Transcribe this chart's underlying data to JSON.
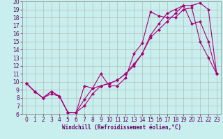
{
  "xlabel": "Windchill (Refroidissement éolien,°C)",
  "bg_color": "#c8eeee",
  "grid_color": "#b0b0b0",
  "line_color": "#aa0077",
  "xlim": [
    -0.5,
    23.5
  ],
  "ylim": [
    6,
    20
  ],
  "xticks": [
    0,
    1,
    2,
    3,
    4,
    5,
    6,
    7,
    8,
    9,
    10,
    11,
    12,
    13,
    14,
    15,
    16,
    17,
    18,
    19,
    20,
    21,
    22,
    23
  ],
  "yticks": [
    6,
    7,
    8,
    9,
    10,
    11,
    12,
    13,
    14,
    15,
    16,
    17,
    18,
    19,
    20
  ],
  "line1_x": [
    0,
    1,
    2,
    3,
    4,
    5,
    6,
    7,
    8,
    9,
    10,
    11,
    12,
    13,
    14,
    15,
    16,
    17,
    18,
    19,
    20,
    21,
    22,
    23
  ],
  "line1_y": [
    9.8,
    8.8,
    8.0,
    8.8,
    8.2,
    6.2,
    6.2,
    9.5,
    9.2,
    11.0,
    9.5,
    9.5,
    10.5,
    13.5,
    14.8,
    18.7,
    18.2,
    18.0,
    18.0,
    19.0,
    19.2,
    15.0,
    13.0,
    11.0
  ],
  "line2_x": [
    0,
    1,
    2,
    3,
    4,
    5,
    6,
    7,
    8,
    9,
    10,
    11,
    12,
    13,
    14,
    15,
    16,
    17,
    18,
    19,
    20,
    21,
    22,
    23
  ],
  "line2_y": [
    9.8,
    8.8,
    8.0,
    8.8,
    8.2,
    6.2,
    6.2,
    7.8,
    9.2,
    9.5,
    9.8,
    10.2,
    11.0,
    12.0,
    13.5,
    15.8,
    17.2,
    18.5,
    19.0,
    19.5,
    17.2,
    17.5,
    15.0,
    11.0
  ],
  "line3_x": [
    0,
    1,
    2,
    3,
    4,
    5,
    6,
    7,
    8,
    9,
    10,
    11,
    12,
    13,
    14,
    15,
    16,
    17,
    18,
    19,
    20,
    21,
    22,
    23
  ],
  "line3_y": [
    9.8,
    8.8,
    8.0,
    8.5,
    8.2,
    6.2,
    6.2,
    7.0,
    8.5,
    9.5,
    9.8,
    10.2,
    11.0,
    12.2,
    13.5,
    15.5,
    16.5,
    17.5,
    18.5,
    19.5,
    19.5,
    19.8,
    19.0,
    11.0
  ],
  "tick_fontsize": 5.5,
  "xlabel_fontsize": 5.5,
  "marker_size": 2.5,
  "linewidth": 0.8
}
